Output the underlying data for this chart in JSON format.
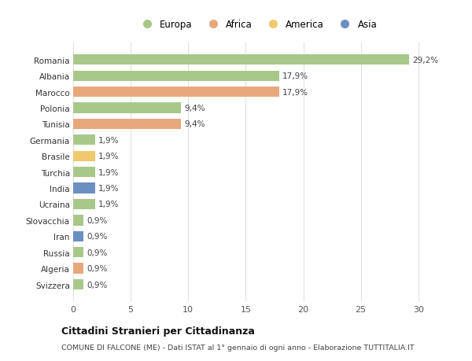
{
  "countries": [
    "Romania",
    "Albania",
    "Marocco",
    "Polonia",
    "Tunisia",
    "Germania",
    "Brasile",
    "Turchia",
    "India",
    "Ucraina",
    "Slovacchia",
    "Iran",
    "Russia",
    "Algeria",
    "Svizzera"
  ],
  "values": [
    29.2,
    17.9,
    17.9,
    9.4,
    9.4,
    1.9,
    1.9,
    1.9,
    1.9,
    1.9,
    0.9,
    0.9,
    0.9,
    0.9,
    0.9
  ],
  "labels": [
    "29,2%",
    "17,9%",
    "17,9%",
    "9,4%",
    "9,4%",
    "1,9%",
    "1,9%",
    "1,9%",
    "1,9%",
    "1,9%",
    "0,9%",
    "0,9%",
    "0,9%",
    "0,9%",
    "0,9%"
  ],
  "continents": [
    "Europa",
    "Europa",
    "Africa",
    "Europa",
    "Africa",
    "Europa",
    "America",
    "Europa",
    "Asia",
    "Europa",
    "Europa",
    "Asia",
    "Europa",
    "Africa",
    "Europa"
  ],
  "colors": {
    "Europa": "#a8c88a",
    "Africa": "#e8a87c",
    "America": "#f0c96e",
    "Asia": "#6b8fbf"
  },
  "legend_order": [
    "Europa",
    "Africa",
    "America",
    "Asia"
  ],
  "title": "Cittadini Stranieri per Cittadinanza",
  "subtitle": "COMUNE DI FALCONE (ME) - Dati ISTAT al 1° gennaio di ogni anno - Elaborazione TUTTITALIA.IT",
  "xlim": [
    0,
    32
  ],
  "xticks": [
    0,
    5,
    10,
    15,
    20,
    25,
    30
  ],
  "bg_color": "#ffffff",
  "grid_color": "#e0e0e0"
}
